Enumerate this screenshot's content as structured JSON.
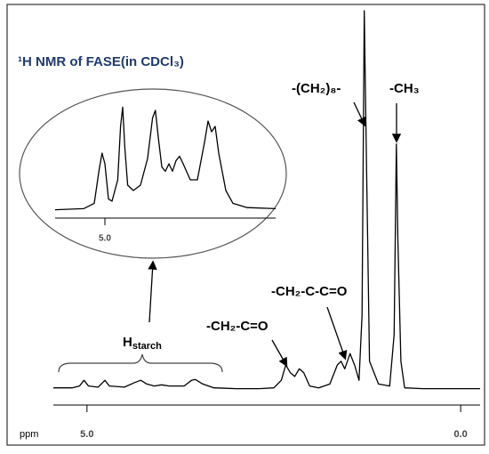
{
  "chart_data": [
    {
      "type": "line",
      "title": "¹H NMR of FASE(in CDCl₃)",
      "x_label": "ppm",
      "annotations": [
        "-(CH₂)₈-",
        "-CH₃",
        "-CH₂-C-C=O",
        "-CH₂-C=O"
      ],
      "starch_label": {
        "text": "H",
        "sub": "starch"
      },
      "x": [
        5.45,
        5.2,
        5.1,
        5.04,
        4.98,
        4.85,
        4.76,
        4.7,
        4.5,
        4.35,
        4.28,
        4.2,
        4.1,
        4.0,
        3.9,
        3.7,
        3.6,
        3.55,
        3.45,
        3.3,
        3.0,
        2.7,
        2.5,
        2.4,
        2.34,
        2.28,
        2.22,
        2.16,
        2.1,
        2.02,
        1.9,
        1.75,
        1.65,
        1.6,
        1.55,
        1.48,
        1.42,
        1.36,
        1.32,
        1.29,
        1.26,
        1.22,
        1.1,
        0.95,
        0.89,
        0.86,
        0.84,
        0.8,
        0.75,
        0.5,
        0.2,
        -0.26
      ],
      "values": [
        1,
        1,
        1.5,
        3,
        1.5,
        1.2,
        3,
        1.5,
        1.2,
        2.5,
        3,
        2,
        1.5,
        1.8,
        1.5,
        1.5,
        3,
        3.2,
        2,
        1,
        0.8,
        0.8,
        1,
        3,
        7,
        5,
        4,
        6,
        5,
        1.5,
        1,
        2,
        7,
        8,
        6,
        10,
        7,
        3,
        20,
        100,
        60,
        8,
        2,
        1.5,
        15,
        65,
        40,
        8,
        1,
        0.8,
        0.8,
        0.8
      ],
      "color": "#000000",
      "xlim": [
        5.45,
        -0.26
      ],
      "ylim": [
        0,
        100
      ],
      "xticks": [
        {
          "value": 5,
          "label": "5.0"
        },
        {
          "value": 0,
          "label": "0.0"
        }
      ]
    },
    {
      "type": "line",
      "x": [
        5.7,
        5.3,
        5.15,
        5.08,
        5.04,
        5.0,
        4.95,
        4.9,
        4.82,
        4.78,
        4.75,
        4.72,
        4.68,
        4.6,
        4.5,
        4.4,
        4.33,
        4.29,
        4.25,
        4.2,
        4.15,
        4.1,
        4.05,
        4.0,
        3.95,
        3.9,
        3.8,
        3.7,
        3.6,
        3.55,
        3.5,
        3.45,
        3.4,
        3.3,
        3.2,
        3.0,
        2.6
      ],
      "values": [
        2,
        3,
        8,
        40,
        55,
        45,
        12,
        10,
        30,
        80,
        98,
        60,
        25,
        20,
        25,
        50,
        88,
        95,
        70,
        42,
        38,
        45,
        38,
        48,
        52,
        45,
        30,
        30,
        65,
        85,
        75,
        80,
        55,
        20,
        8,
        4,
        3
      ],
      "color": "#000000",
      "xlim": [
        5.7,
        2.6
      ],
      "ylim": [
        0,
        100
      ],
      "xticks": [
        {
          "value": 5,
          "label": "5.0"
        }
      ]
    }
  ]
}
